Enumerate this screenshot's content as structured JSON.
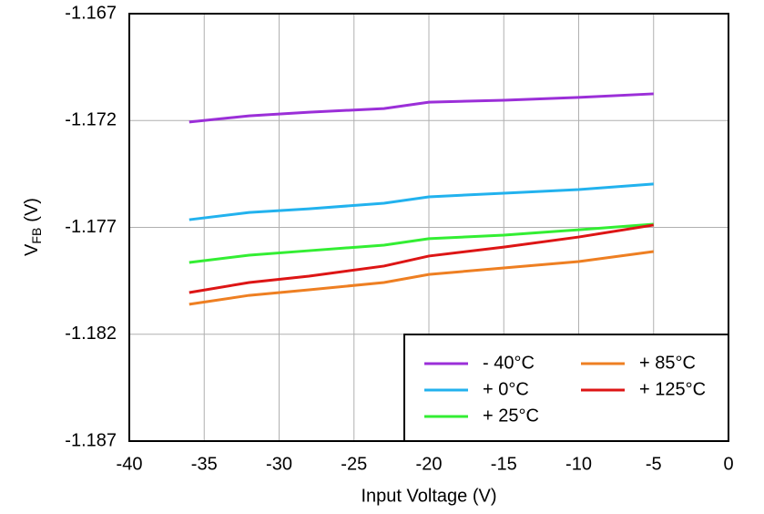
{
  "chart_data": {
    "type": "line",
    "xlabel": "Input Voltage (V)",
    "ylabel": [
      "V",
      "FB",
      "(V)"
    ],
    "x": [
      -36,
      -32,
      -28,
      -23,
      -20,
      -15,
      -10,
      -5
    ],
    "series": [
      {
        "name": "- 40°C",
        "color": "#9b2fd8",
        "values": [
          -1.17207,
          -1.17178,
          -1.17161,
          -1.17144,
          -1.17114,
          -1.17105,
          -1.17092,
          -1.17075
        ]
      },
      {
        "name": "+ 0°C",
        "color": "#22b2ee",
        "values": [
          -1.17664,
          -1.1763,
          -1.17613,
          -1.17587,
          -1.17557,
          -1.1754,
          -1.17523,
          -1.17497
        ]
      },
      {
        "name": "+ 25°C",
        "color": "#33ee33",
        "values": [
          -1.17864,
          -1.1783,
          -1.17809,
          -1.17783,
          -1.17753,
          -1.17736,
          -1.17711,
          -1.17685
        ]
      },
      {
        "name": "+ 85°C",
        "color": "#ee7f22",
        "values": [
          -1.1806,
          -1.18018,
          -1.17992,
          -1.17958,
          -1.1792,
          -1.1789,
          -1.1786,
          -1.17813
        ]
      },
      {
        "name": "+ 125°C",
        "color": "#dd1515",
        "values": [
          -1.18005,
          -1.17958,
          -1.17928,
          -1.17881,
          -1.17834,
          -1.17792,
          -1.17745,
          -1.17689
        ]
      }
    ],
    "xlim": [
      -40,
      0
    ],
    "xticks": [
      -40,
      -35,
      -30,
      -25,
      -20,
      -15,
      -10,
      -5,
      0
    ],
    "ylim": [
      -1.187,
      -1.167
    ],
    "yticks": [
      -1.187,
      -1.182,
      -1.177,
      -1.172,
      -1.167
    ],
    "grid": true,
    "legend": "lower right"
  }
}
